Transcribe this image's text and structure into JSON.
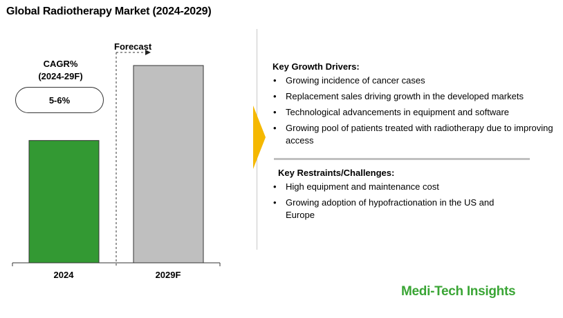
{
  "chart_data": {
    "type": "bar",
    "title": "Global Radiotherapy Market (2024-2029)",
    "categories": [
      "2024",
      "2029F"
    ],
    "values": [
      0.62,
      1.0
    ],
    "value_note": "relative bar heights; no value axis shown",
    "colors": [
      "#339933",
      "#bfbfbf"
    ],
    "forecast_label": "Forecast",
    "forecast_starts_at": "2029F",
    "cagr": {
      "label_line1": "CAGR%",
      "label_line2": "(2024-29F)",
      "value": "5-6%"
    },
    "xlabel": "",
    "ylabel": ""
  },
  "drivers": {
    "title": "Key Growth Drivers:",
    "items": [
      "Growing incidence of cancer cases",
      "Replacement sales driving growth in the developed markets",
      "Technological advancements in equipment and software",
      "Growing pool of patients treated with radiotherapy due to improving access"
    ]
  },
  "restraints": {
    "title": "Key Restraints/Challenges:",
    "items": [
      "High equipment and maintenance cost",
      "Growing adoption of hypofractionation in the US and Europe"
    ]
  },
  "bullet_char": "•",
  "brand": "Medi-Tech Insights",
  "accent_color": "#f5b800"
}
